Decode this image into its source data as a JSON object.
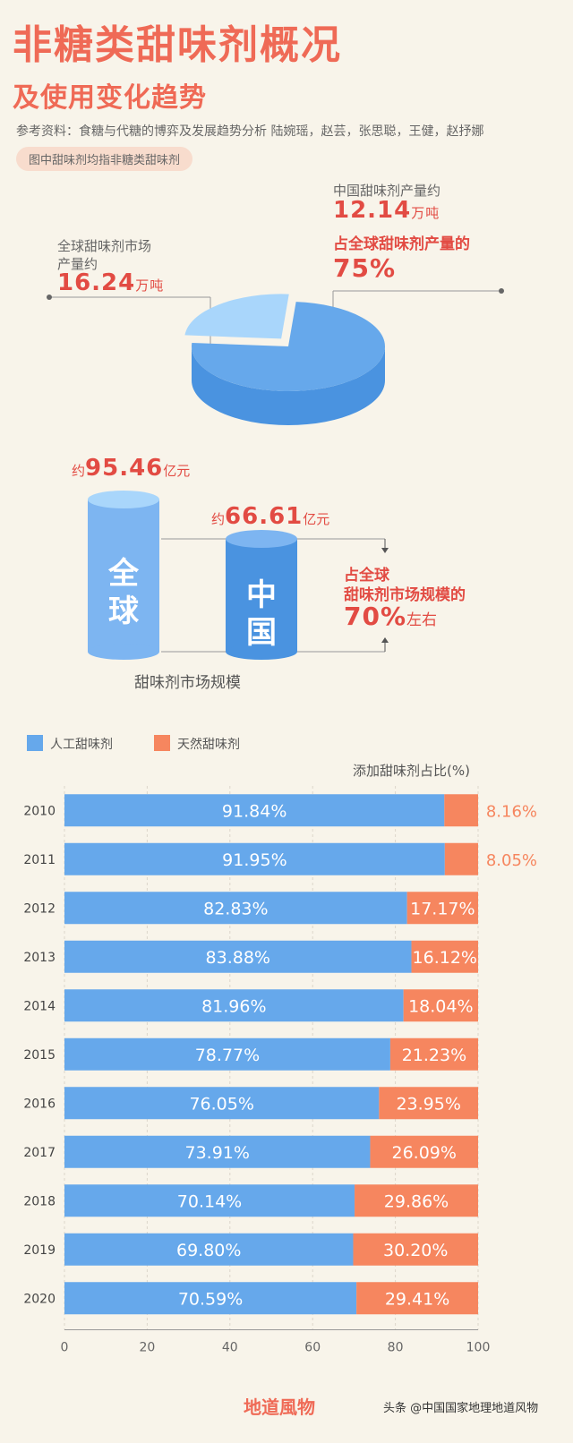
{
  "header": {
    "title_line1": "非糖类甜味剂概况",
    "title_line2": "及使用变化趋势",
    "reference": "参考资料：食糖与代糖的博弈及发展趋势分析 陆婉瑶，赵芸，张思聪，王健，赵抒娜",
    "note": "图中甜味剂均指非糖类甜味剂"
  },
  "pie_section": {
    "china_label": "中国甜味剂产量约",
    "china_value": "12.14",
    "china_unit": "万吨",
    "china_share_label": "占全球甜味剂产量的",
    "china_share_value": "75%",
    "global_label_line1": "全球甜味剂市场",
    "global_label_line2": "产量约",
    "global_value": "16.24",
    "global_unit": "万吨",
    "china_share_fraction": 0.75,
    "colors": {
      "main": "#66a8eb",
      "slice": "#a9d6fb",
      "side": "#4a93e0"
    }
  },
  "market_section": {
    "global_prefix": "约",
    "global_value": "95.46",
    "global_unit": "亿元",
    "global_label": "全球",
    "china_prefix": "约",
    "china_value": "66.61",
    "china_unit": "亿元",
    "china_label": "中国",
    "share_line1": "占全球",
    "share_line2": "甜味剂市场规模的",
    "share_value": "70%",
    "share_suffix": "左右",
    "caption": "甜味剂市场规模"
  },
  "chart_data": {
    "type": "bar",
    "stacked": true,
    "orientation": "horizontal",
    "title": "添加甜味剂占比(%)",
    "categories": [
      "2010",
      "2011",
      "2012",
      "2013",
      "2014",
      "2015",
      "2016",
      "2017",
      "2018",
      "2019",
      "2020"
    ],
    "series": [
      {
        "name": "人工甜味剂",
        "color": "#66a8eb",
        "values": [
          91.84,
          91.95,
          82.83,
          83.88,
          81.96,
          78.77,
          76.05,
          73.91,
          70.14,
          69.8,
          70.59
        ],
        "labels": [
          "91.84%",
          "91.95%",
          "82.83%",
          "83.88%",
          "81.96%",
          "78.77%",
          "76.05%",
          "73.91%",
          "70.14%",
          "69.80%",
          "70.59%"
        ]
      },
      {
        "name": "天然甜味剂",
        "color": "#f6865f",
        "values": [
          8.16,
          8.05,
          17.17,
          16.12,
          18.04,
          21.23,
          23.95,
          26.09,
          29.86,
          30.2,
          29.41
        ],
        "labels": [
          "8.16%",
          "8.05%",
          "17.17%",
          "16.12%",
          "18.04%",
          "21.23%",
          "23.95%",
          "26.09%",
          "29.86%",
          "30.20%",
          "29.41%"
        ]
      }
    ],
    "xlim": [
      0,
      100
    ],
    "xticks": [
      0,
      20,
      40,
      60,
      80,
      100
    ],
    "xtick_labels": [
      "0",
      "20",
      "40",
      "60",
      "80",
      "100"
    ],
    "legend": "top-left",
    "grid": true
  },
  "footer": {
    "brand": "地道風物",
    "watermark": "头条 @中国国家地理地道风物"
  }
}
